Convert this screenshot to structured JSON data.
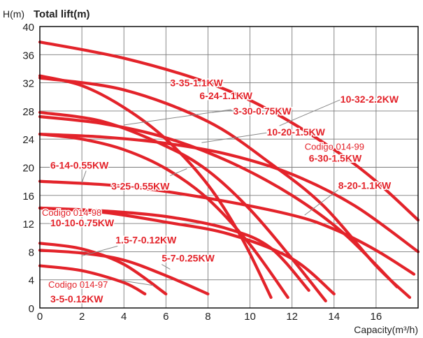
{
  "chart_data": {
    "type": "line",
    "title": "Total lift(m)",
    "ylabel": "H(m)",
    "xlabel": "Capacity(m³/h)",
    "xlim": [
      0,
      18
    ],
    "ylim": [
      0,
      40
    ],
    "x_ticks": [
      "0",
      "2",
      "4",
      "6",
      "8",
      "10",
      "12",
      "14",
      "16"
    ],
    "y_ticks": [
      "0",
      "4",
      "8",
      "12",
      "16",
      "20",
      "24",
      "28",
      "32",
      "36",
      "40"
    ],
    "grid": true,
    "curve_color": "#e3232a",
    "label_color": "#e3232a",
    "code_color": "#e3232a",
    "series": [
      {
        "x": [
          0,
          4,
          8,
          11,
          14,
          16,
          18
        ],
        "y": [
          37.8,
          35.5,
          32,
          28,
          22.5,
          18,
          12.5
        ]
      },
      {
        "x": [
          0,
          4,
          8,
          11,
          13.5,
          16,
          17.6
        ],
        "y": [
          32.7,
          31,
          26.5,
          20.5,
          14.5,
          6,
          1.5
        ]
      },
      {
        "x": [
          0,
          3,
          6,
          8,
          10,
          12,
          13.6
        ],
        "y": [
          27.8,
          26.5,
          23,
          19.5,
          14,
          7,
          1
        ]
      },
      {
        "x": [
          0,
          2,
          4,
          6,
          8,
          9.6,
          11
        ],
        "y": [
          33,
          31.6,
          28.5,
          24,
          17.5,
          10,
          1.5
        ]
      },
      {
        "x": [
          0,
          3,
          6,
          9,
          12,
          14.5,
          17
        ],
        "y": [
          27.2,
          26.2,
          24.2,
          20.8,
          16,
          10.5,
          3
        ]
      },
      {
        "x": [
          0,
          2,
          4,
          6,
          8,
          10,
          11.8
        ],
        "y": [
          24.7,
          24,
          22.5,
          19.8,
          15.5,
          9,
          1.5
        ]
      },
      {
        "x": [
          0,
          3,
          6,
          9,
          12,
          15,
          18
        ],
        "y": [
          24.7,
          24.3,
          23.4,
          21.8,
          19,
          14.5,
          8
        ]
      },
      {
        "x": [
          0,
          4,
          8,
          12,
          14,
          16,
          17.8
        ],
        "y": [
          18,
          17.3,
          15.6,
          13.2,
          11.2,
          8.2,
          4.8
        ]
      },
      {
        "x": [
          0,
          3,
          6,
          9,
          11,
          12.8
        ],
        "y": [
          14.2,
          13.8,
          13,
          11.2,
          8.5,
          2.5
        ]
      },
      {
        "x": [
          0,
          3,
          6,
          9,
          12,
          14
        ],
        "y": [
          14.2,
          13.6,
          12.2,
          10.5,
          7,
          2
        ]
      },
      {
        "x": [
          0,
          2,
          4,
          6,
          8
        ],
        "y": [
          8.2,
          7.8,
          6.8,
          4.6,
          2
        ]
      },
      {
        "x": [
          0,
          2,
          4,
          6
        ],
        "y": [
          9.2,
          8.4,
          6.2,
          2
        ]
      },
      {
        "x": [
          0,
          2,
          4,
          5
        ],
        "y": [
          6,
          5.3,
          3.6,
          2
        ]
      }
    ],
    "labels": [
      {
        "text": "3-35-1.1KW",
        "x": 6.2,
        "y": 31.5,
        "anchor": "start"
      },
      {
        "text": "6-24-1.1KW",
        "x": 7.6,
        "y": 29.7,
        "anchor": "start"
      },
      {
        "text": "3-30-0.75KW",
        "x": 9.2,
        "y": 27.5,
        "anchor": "start"
      },
      {
        "text": "10-32-2.2KW",
        "x": 14.3,
        "y": 29.2,
        "anchor": "start"
      },
      {
        "text": "10-20-1.5KW",
        "x": 10.8,
        "y": 24.5,
        "anchor": "start"
      },
      {
        "text": "6-30-1.5KW",
        "x": 12.8,
        "y": 20.8,
        "anchor": "start"
      },
      {
        "text": "6-14-0.55KW",
        "x": 0.5,
        "y": 19.8,
        "anchor": "start"
      },
      {
        "text": "3-25-0.55KW",
        "x": 3.4,
        "y": 16.8,
        "anchor": "start"
      },
      {
        "text": "8-20-1.1KW",
        "x": 14.2,
        "y": 16.9,
        "anchor": "start"
      },
      {
        "text": "10-10-0.75KW",
        "x": 0.5,
        "y": 11.6,
        "anchor": "start"
      },
      {
        "text": "1.5-7-0.12KW",
        "x": 3.6,
        "y": 9.2,
        "anchor": "start"
      },
      {
        "text": "5-7-0.25KW",
        "x": 5.8,
        "y": 6.6,
        "anchor": "start"
      },
      {
        "text": "3-5-0.12KW",
        "x": 0.5,
        "y": 0.8,
        "anchor": "start"
      }
    ],
    "codes": [
      {
        "text": "Codigo 014-99",
        "x": 12.6,
        "y": 22.5
      },
      {
        "text": "Codigo 014-98",
        "x": 0.1,
        "y": 13.1
      },
      {
        "text": "Codigo 014-97",
        "x": 0.4,
        "y": 2.9
      }
    ],
    "leaders": [
      {
        "x1": 4,
        "y1": 26,
        "x2": 9.1,
        "y2": 28.2
      },
      {
        "x1": 8.2,
        "y1": 27.8,
        "x2": 9.2,
        "y2": 28.1
      },
      {
        "x1": 11.4,
        "y1": 25.9,
        "x2": 14.3,
        "y2": 29.6
      },
      {
        "x1": 7.7,
        "y1": 23.5,
        "x2": 10.8,
        "y2": 24.9
      },
      {
        "x1": 6.2,
        "y1": 18.8,
        "x2": 7.0,
        "y2": 19.8
      },
      {
        "x1": 2.0,
        "y1": 17.8,
        "x2": 2.2,
        "y2": 19.5
      },
      {
        "x1": 12.6,
        "y1": 13.2,
        "x2": 14.2,
        "y2": 16.8
      },
      {
        "x1": 2.0,
        "y1": 7.4,
        "x2": 3.7,
        "y2": 8.8
      },
      {
        "x1": 6.2,
        "y1": 5.5,
        "x2": 5.8,
        "y2": 6.2
      },
      {
        "x1": 3.9,
        "y1": 3.9,
        "x2": 5.4,
        "y2": 3.2
      }
    ]
  }
}
